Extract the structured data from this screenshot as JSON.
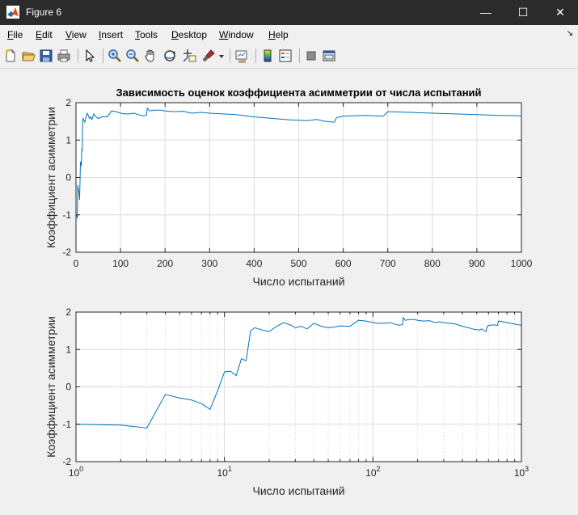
{
  "window": {
    "title": "Figure 6",
    "minimize": "—",
    "maximize": "☐",
    "close": "✕"
  },
  "menu": {
    "items": [
      {
        "u": "F",
        "rest": "ile"
      },
      {
        "u": "E",
        "rest": "dit"
      },
      {
        "u": "V",
        "rest": "iew"
      },
      {
        "u": "I",
        "rest": "nsert"
      },
      {
        "u": "T",
        "rest": "ools"
      },
      {
        "u": "D",
        "rest": "esktop"
      },
      {
        "u": "W",
        "rest": "indow"
      },
      {
        "u": "H",
        "rest": "elp"
      }
    ],
    "dock": "↘"
  },
  "toolbar": {
    "icons": [
      "new-figure-icon",
      "open-file-icon",
      "save-icon",
      "print-icon",
      "edit-plot-arrow-icon",
      "zoom-in-icon",
      "zoom-out-icon",
      "pan-hand-icon",
      "rotate-3d-icon",
      "data-cursor-icon",
      "brush-icon",
      "brush-dropdown-icon",
      "link-plot-icon",
      "colorbar-icon",
      "legend-icon",
      "hide-plot-tools-icon",
      "show-plot-tools-icon"
    ]
  },
  "chart_data": [
    {
      "type": "line",
      "title": "Зависимость оценок коэффициента асимметрии от числа испытаний",
      "xlabel": "Число испытаний",
      "ylabel": "Коэффициент асимметрии",
      "xlim": [
        0,
        1000
      ],
      "ylim": [
        -2,
        2
      ],
      "xscale": "linear",
      "grid": true,
      "xticks": [
        "0",
        "100",
        "200",
        "300",
        "400",
        "500",
        "600",
        "700",
        "800",
        "900",
        "1000"
      ],
      "yticks": [
        "-2",
        "-1",
        "0",
        "1",
        "2"
      ],
      "color": "#0072bd",
      "series": [
        {
          "x": [
            1,
            2,
            3,
            4,
            5,
            6,
            7,
            8,
            9,
            10,
            11,
            12,
            13,
            14,
            15,
            16,
            17,
            18,
            19,
            20,
            22,
            25,
            28,
            30,
            33,
            36,
            40,
            45,
            50,
            55,
            60,
            70,
            80,
            90,
            100,
            110,
            120,
            130,
            140,
            150,
            158,
            160,
            165,
            175,
            190,
            200,
            220,
            240,
            260,
            280,
            300,
            330,
            360,
            400,
            440,
            480,
            520,
            540,
            560,
            580,
            585,
            600,
            650,
            690,
            700,
            750,
            800,
            850,
            900,
            950,
            1000
          ],
          "y": [
            -1,
            -1.02,
            -1.1,
            -0.2,
            -0.3,
            -0.35,
            -0.45,
            -0.6,
            -0.1,
            0.4,
            0.42,
            0.3,
            0.75,
            0.7,
            1.5,
            1.58,
            1.55,
            1.52,
            1.5,
            1.48,
            1.6,
            1.72,
            1.65,
            1.58,
            1.62,
            1.55,
            1.7,
            1.62,
            1.58,
            1.6,
            1.63,
            1.62,
            1.78,
            1.76,
            1.72,
            1.7,
            1.7,
            1.72,
            1.68,
            1.65,
            1.66,
            1.85,
            1.78,
            1.8,
            1.8,
            1.78,
            1.76,
            1.77,
            1.72,
            1.74,
            1.72,
            1.7,
            1.68,
            1.62,
            1.58,
            1.54,
            1.52,
            1.55,
            1.5,
            1.48,
            1.6,
            1.64,
            1.66,
            1.64,
            1.76,
            1.74,
            1.72,
            1.7,
            1.68,
            1.66,
            1.65
          ]
        }
      ]
    },
    {
      "type": "line",
      "title": "",
      "xlabel": "Число испытаний",
      "ylabel": "Коэффициент асимметрии",
      "xlim": [
        1,
        1000
      ],
      "ylim": [
        -2,
        2
      ],
      "xscale": "log",
      "grid": true,
      "xticks": [
        {
          "base": "10",
          "exp": "0"
        },
        {
          "base": "10",
          "exp": "1"
        },
        {
          "base": "10",
          "exp": "2"
        },
        {
          "base": "10",
          "exp": "3"
        }
      ],
      "yticks": [
        "-2",
        "-1",
        "0",
        "1",
        "2"
      ],
      "color": "#0072bd"
    }
  ]
}
